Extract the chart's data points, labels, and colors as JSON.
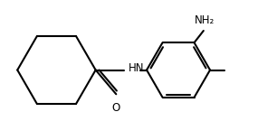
{
  "background_color": "#ffffff",
  "line_color": "#000000",
  "line_width": 1.5,
  "fig_width": 3.06,
  "fig_height": 1.55,
  "dpi": 100,
  "label_nh2": "NH₂",
  "label_hn": "HN",
  "label_o": "O",
  "font_size": 8.5
}
